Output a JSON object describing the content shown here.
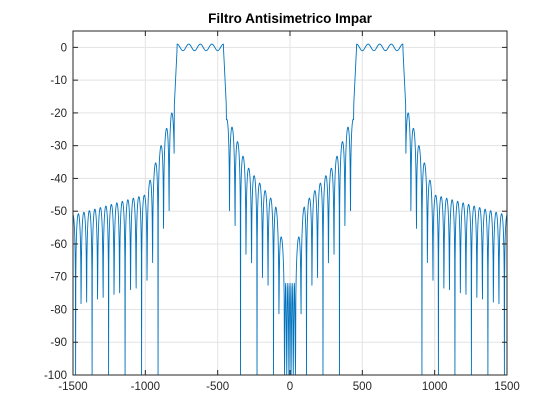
{
  "chart_data": {
    "type": "line",
    "title": "Filtro Antisimetrico Impar",
    "xlabel": "",
    "ylabel": "",
    "xlim": [
      -1500,
      1500
    ],
    "ylim": [
      -100,
      5
    ],
    "xticks": [
      -1500,
      -1000,
      -500,
      0,
      500,
      1000,
      1500
    ],
    "xtick_labels": [
      "-1500",
      "-1000",
      "-500",
      "0",
      "500",
      "1000",
      "1500"
    ],
    "yticks": [
      0,
      -10,
      -20,
      -30,
      -40,
      -50,
      -60,
      -70,
      -80,
      -90,
      -100
    ],
    "ytick_labels": [
      "0",
      "-10",
      "-20",
      "-30",
      "-40",
      "-50",
      "-60",
      "-70",
      "-80",
      "-90",
      "-100"
    ],
    "grid": true,
    "legend": "none",
    "line_color": "#0072BD",
    "series": [
      {
        "passbands_hz": [
          [
            -780,
            -460
          ],
          [
            460,
            780
          ]
        ],
        "passband_ripple_db": [
          -1.0,
          1.0
        ],
        "transition_edges_hz": [
          -800,
          -440,
          440,
          800
        ],
        "first_sidelobe_db": -18,
        "sidelobe_envelope": [
          {
            "x": -1480,
            "y": -51
          },
          {
            "x": -1000,
            "y": -45
          },
          {
            "x": -820,
            "y": -20
          },
          {
            "x": -420,
            "y": -22
          },
          {
            "x": -300,
            "y": -36
          },
          {
            "x": -100,
            "y": -48
          },
          {
            "x": 0,
            "y": -72
          },
          {
            "x": 100,
            "y": -48
          },
          {
            "x": 300,
            "y": -36
          },
          {
            "x": 420,
            "y": -22
          },
          {
            "x": 820,
            "y": -20
          },
          {
            "x": 1000,
            "y": -45
          },
          {
            "x": 1480,
            "y": -51
          }
        ],
        "null_spacing_hz": 38
      }
    ]
  }
}
